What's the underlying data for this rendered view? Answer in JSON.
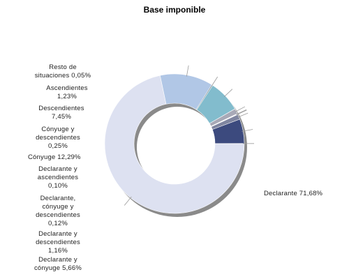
{
  "chart_data": {
    "type": "pie",
    "title": "Base imponible",
    "unit": "%",
    "decimal_separator": ",",
    "slices": [
      {
        "name": "Declarante",
        "value": 71.68,
        "color": "#dde1f1",
        "label_lines": [
          "Declarante 71,68%"
        ]
      },
      {
        "name": "Cónyuge",
        "value": 12.29,
        "color": "#b1c7e6",
        "label_lines": [
          "Cónyuge 12,29%"
        ]
      },
      {
        "name": "Cónyuge y descendientes",
        "value": 0.25,
        "color": "#6b7e88",
        "label_lines": [
          "Cónyuge y",
          "descendientes",
          "0,25%"
        ]
      },
      {
        "name": "Descendientes",
        "value": 7.45,
        "color": "#82bccd",
        "label_lines": [
          "Descendientes",
          "7,45%"
        ]
      },
      {
        "name": "Ascendientes",
        "value": 1.23,
        "color": "#a8a9b7",
        "label_lines": [
          "Ascendientes",
          "1,23%"
        ]
      },
      {
        "name": "Declarante y ascendientes",
        "value": 0.1,
        "color": "#8e93a4",
        "label_lines": [
          "Declarante y",
          "ascendientes",
          "0,10%"
        ]
      },
      {
        "name": "Declarante, cónyuge y descendientes",
        "value": 0.12,
        "color": "#9a9fb0",
        "label_lines": [
          "Declarante,",
          "cónyuge y",
          "descendientes",
          "0,12%"
        ]
      },
      {
        "name": "Declarante y descendientes",
        "value": 1.16,
        "color": "#7f85a0",
        "label_lines": [
          "Declarante y",
          "descendientes",
          "1,16%"
        ]
      },
      {
        "name": "Declarante y cónyuge",
        "value": 5.66,
        "color": "#3c4a7e",
        "label_lines": [
          "Declarante y",
          "cónyuge 5,66%"
        ]
      },
      {
        "name": "Resto de situaciones",
        "value": 0.05,
        "color": "#c4c8d6",
        "label_lines": [
          "Resto de",
          "situaciones 0,05%"
        ]
      }
    ]
  }
}
